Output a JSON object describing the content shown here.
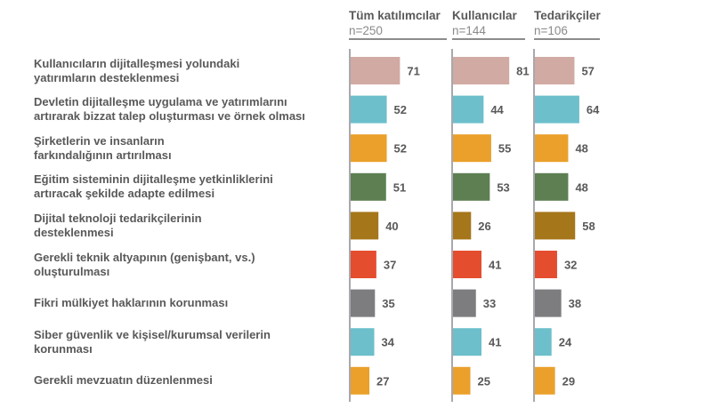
{
  "chart_data": {
    "type": "bar",
    "orientation": "horizontal",
    "title": "",
    "xlabel": "",
    "ylabel": "",
    "xlim": [
      0,
      100
    ],
    "grid": false,
    "categories": [
      "Kullanıcıların dijitalleşmesi yolundaki yatırımların desteklenmesi",
      "Devletin dijitalleşme uygulama ve yatırımlarını artırarak bizzat talep oluşturması ve örnek olması",
      "Şirketlerin ve insanların farkındalığının artırılması",
      "Eğitim sisteminin dijitalleşme yetkinliklerini artıracak şekilde adapte edilmesi",
      "Dijital teknoloji tedarikçilerinin desteklenmesi",
      "Gerekli teknik altyapının (genişbant, vs.) oluşturulması",
      "Fikri mülkiyet haklarının korunması",
      "Siber güvenlik ve kişisel/kurumsal verilerin korunması",
      "Gerekli mevzuatın düzenlenmesi"
    ],
    "category_lines": [
      [
        "Kullanıcıların dijitalleşmesi yolundaki",
        "yatırımların desteklenmesi"
      ],
      [
        "Devletin dijitalleşme uygulama ve yatırımlarını",
        "artırarak bizzat talep oluşturması ve örnek olması"
      ],
      [
        "Şirketlerin ve insanların",
        "farkındalığının artırılması"
      ],
      [
        "Eğitim sisteminin dijitalleşme yetkinliklerini",
        "artıracak şekilde adapte edilmesi"
      ],
      [
        "Dijital teknoloji tedarikçilerinin",
        "desteklenmesi"
      ],
      [
        "Gerekli teknik altyapının (genişbant, vs.)",
        "oluşturulması"
      ],
      [
        "Fikri mülkiyet haklarının korunması"
      ],
      [
        "Siber güvenlik ve kişisel/kurumsal verilerin",
        "korunması"
      ],
      [
        "Gerekli mevzuatın düzenlenmesi"
      ]
    ],
    "category_colors": [
      "#d0aaa3",
      "#6cbfcb",
      "#eaa02a",
      "#5d7f52",
      "#a6761b",
      "#e44d2e",
      "#7d7d80",
      "#6cbfcb",
      "#eaa02a"
    ],
    "series": [
      {
        "name": "Tüm katılımcılar",
        "n": "n=250",
        "values": [
          71,
          52,
          52,
          51,
          40,
          37,
          35,
          34,
          27
        ]
      },
      {
        "name": "Kullanıcılar",
        "n": "n=144",
        "values": [
          81,
          44,
          55,
          53,
          26,
          41,
          33,
          41,
          25
        ]
      },
      {
        "name": "Tedarikçiler",
        "n": "n=106",
        "values": [
          57,
          64,
          48,
          48,
          58,
          32,
          38,
          24,
          29
        ]
      }
    ],
    "axis_color": "#8c8c94",
    "label_color": "#595959"
  }
}
